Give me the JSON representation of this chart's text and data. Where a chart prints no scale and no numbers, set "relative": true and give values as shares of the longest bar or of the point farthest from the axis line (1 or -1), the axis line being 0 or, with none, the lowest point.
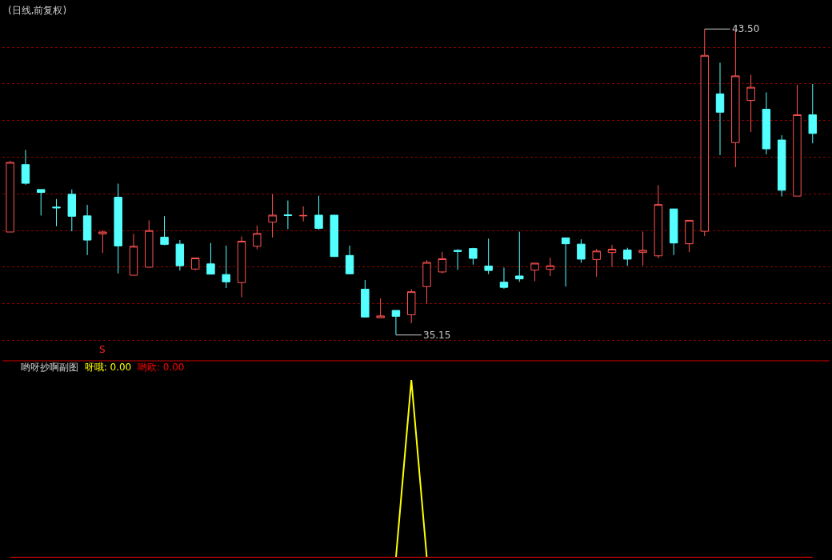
{
  "chart_data": [
    {
      "type": "candlestick",
      "title": "(日线,前复权)",
      "grid": "y",
      "yticks": [
        {
          "value": 35,
          "label": null
        },
        {
          "value": 36,
          "label": null
        },
        {
          "value": 37,
          "label": null
        },
        {
          "value": 38,
          "label": null
        },
        {
          "value": 39,
          "label": null
        },
        {
          "value": 40,
          "label": null
        },
        {
          "value": 41,
          "label": null
        },
        {
          "value": 42,
          "label": null
        },
        {
          "value": 43,
          "label": null
        }
      ],
      "categories": [
        null,
        null,
        null,
        null,
        null,
        null,
        null,
        null,
        null,
        null,
        null,
        null,
        null,
        null,
        null,
        null,
        null,
        null,
        null,
        null,
        null,
        null,
        null,
        null,
        null,
        null,
        null,
        null,
        null,
        null,
        null,
        null,
        null,
        null,
        null,
        null,
        null,
        null,
        null,
        null,
        null,
        null,
        null,
        null,
        null,
        null,
        null,
        null,
        null,
        null,
        null,
        null,
        null
      ],
      "colors": [
        "#ff5252",
        "#54ffff",
        "#54ffff",
        "#54ffff",
        "#54ffff",
        "#54ffff",
        "#ff5252",
        "#54ffff",
        "#ff5252",
        "#ff5252",
        "#54ffff",
        "#54ffff",
        "#ff5252",
        "#54ffff",
        "#54ffff",
        "#ff5252",
        "#ff5252",
        "#ff5252",
        "#54ffff",
        "#ff5252",
        "#54ffff",
        "#54ffff",
        "#54ffff",
        "#54ffff",
        "#ff5252",
        "#54ffff",
        "#ff5252",
        "#ff5252",
        "#ff5252",
        "#54ffff",
        "#54ffff",
        "#54ffff",
        "#54ffff",
        "#54ffff",
        "#ff5252",
        "#ff5252",
        "#54ffff",
        "#54ffff",
        "#ff5252",
        "#ff5252",
        "#54ffff",
        "#ff5252",
        "#ff5252",
        "#54ffff",
        "#ff5252",
        "#ff5252",
        "#54ffff",
        "#ff5252",
        "#ff5252",
        "#54ffff",
        "#54ffff",
        "#ff5252",
        "#54ffff"
      ],
      "ohlc": [
        [
          37.96,
          39.9,
          37.96,
          39.86
        ],
        [
          39.8,
          40.2,
          39.25,
          39.29
        ],
        [
          39.12,
          39.12,
          38.41,
          39.04
        ],
        [
          38.64,
          38.86,
          38.12,
          38.62
        ],
        [
          38.99,
          39.12,
          37.98,
          38.39
        ],
        [
          38.4,
          38.7,
          37.33,
          37.74
        ],
        [
          37.91,
          38.0,
          37.39,
          37.96
        ],
        [
          38.91,
          39.28,
          36.83,
          37.58
        ],
        [
          36.78,
          37.91,
          36.78,
          37.57
        ],
        [
          37.0,
          38.28,
          37.0,
          38.0
        ],
        [
          37.82,
          38.39,
          37.6,
          37.62
        ],
        [
          37.63,
          37.74,
          36.91,
          37.04
        ],
        [
          36.95,
          37.25,
          36.91,
          37.25
        ],
        [
          37.09,
          37.66,
          36.81,
          36.81
        ],
        [
          36.8,
          37.59,
          36.43,
          36.6
        ],
        [
          36.58,
          37.84,
          36.18,
          37.71
        ],
        [
          37.57,
          38.14,
          37.49,
          37.92
        ],
        [
          38.23,
          38.99,
          37.81,
          38.42
        ],
        [
          38.43,
          38.82,
          38.04,
          38.41
        ],
        [
          38.4,
          38.66,
          38.25,
          38.41
        ],
        [
          38.42,
          38.95,
          38.02,
          38.06
        ],
        [
          38.42,
          38.42,
          37.29,
          37.29
        ],
        [
          37.32,
          37.59,
          36.81,
          36.82
        ],
        [
          36.4,
          36.65,
          35.64,
          35.64
        ],
        [
          35.62,
          36.15,
          35.62,
          35.67
        ],
        [
          35.82,
          35.82,
          35.15,
          35.66
        ],
        [
          35.7,
          36.4,
          35.47,
          36.33
        ],
        [
          36.47,
          37.19,
          36.01,
          37.13
        ],
        [
          36.87,
          37.42,
          36.83,
          37.23
        ],
        [
          37.46,
          37.49,
          36.93,
          37.43
        ],
        [
          37.51,
          37.53,
          37.07,
          37.24
        ],
        [
          37.03,
          37.78,
          36.81,
          36.91
        ],
        [
          36.59,
          36.99,
          36.41,
          36.45
        ],
        [
          36.76,
          37.97,
          36.6,
          36.68
        ],
        [
          36.92,
          37.11,
          36.62,
          37.11
        ],
        [
          36.94,
          37.26,
          36.76,
          37.04
        ],
        [
          37.8,
          37.8,
          36.47,
          37.64
        ],
        [
          37.63,
          37.76,
          37.12,
          37.22
        ],
        [
          37.21,
          37.5,
          36.74,
          37.44
        ],
        [
          37.4,
          37.61,
          37.01,
          37.49
        ],
        [
          37.47,
          37.53,
          37.04,
          37.22
        ],
        [
          37.4,
          37.97,
          37.04,
          37.46
        ],
        [
          37.31,
          39.24,
          37.24,
          38.71
        ],
        [
          38.59,
          38.59,
          37.33,
          37.66
        ],
        [
          37.64,
          38.28,
          37.41,
          38.28
        ],
        [
          37.98,
          43.5,
          37.85,
          42.78
        ],
        [
          41.73,
          42.58,
          40.06,
          41.23
        ],
        [
          40.4,
          43.45,
          39.73,
          42.22
        ],
        [
          41.55,
          42.25,
          40.69,
          41.91
        ],
        [
          41.31,
          41.77,
          40.08,
          40.23
        ],
        [
          40.47,
          40.6,
          38.93,
          39.1
        ],
        [
          38.94,
          41.98,
          38.94,
          41.16
        ],
        [
          41.16,
          42.0,
          40.38,
          40.65
        ]
      ],
      "annotations": [
        "43.50",
        "35.15",
        "S"
      ]
    },
    {
      "type": "line",
      "title": "哟呀抄啊副图",
      "relative": true,
      "categories": [
        null,
        null,
        null,
        null,
        null,
        null,
        null,
        null,
        null,
        null,
        null,
        null,
        null,
        null,
        null,
        null,
        null,
        null,
        null,
        null,
        null,
        null,
        null,
        null,
        null,
        null,
        null,
        null,
        null,
        null,
        null,
        null,
        null,
        null,
        null,
        null,
        null,
        null,
        null,
        null,
        null,
        null,
        null,
        null,
        null,
        null,
        null,
        null,
        null,
        null,
        null,
        null,
        null
      ],
      "series": [
        {
          "name": "呀哦: 0.00",
          "color": "#ffff00",
          "values": [
            null,
            null,
            null,
            null,
            null,
            null,
            null,
            null,
            null,
            null,
            null,
            null,
            null,
            null,
            null,
            null,
            null,
            null,
            null,
            null,
            null,
            null,
            null,
            null,
            null,
            0,
            1,
            0,
            null,
            null,
            null,
            null,
            null,
            null,
            null,
            null,
            null,
            null,
            null,
            null,
            null,
            null,
            null,
            null,
            null,
            null,
            null,
            null,
            null,
            null,
            null,
            null,
            null
          ]
        },
        {
          "name": "哟欧: 0.00",
          "color": "#ff0000",
          "values": [
            0,
            0,
            0,
            0,
            0,
            0,
            0,
            0,
            0,
            0,
            0,
            0,
            0,
            0,
            0,
            0,
            0,
            0,
            0,
            0,
            0,
            0,
            0,
            0,
            0,
            0,
            0,
            0,
            0,
            0,
            0,
            0,
            0,
            0,
            0,
            0,
            0,
            0,
            0,
            0,
            0,
            0,
            0,
            0,
            0,
            0,
            0,
            0,
            0,
            0,
            0,
            0,
            0
          ]
        }
      ]
    }
  ]
}
